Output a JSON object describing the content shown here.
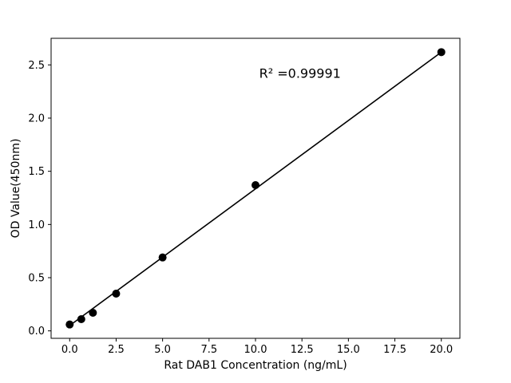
{
  "chart_data": {
    "type": "scatter",
    "title": "",
    "xlabel": "Rat DAB1 Concentration (ng/mL)",
    "ylabel": "OD Value(450nm)",
    "annotation": {
      "text": "R² =0.99991",
      "x": 10.2,
      "y": 2.38
    },
    "x": [
      0,
      0.625,
      1.25,
      2.5,
      5,
      10,
      20
    ],
    "y": [
      0.06,
      0.11,
      0.17,
      0.35,
      0.69,
      1.37,
      2.62
    ],
    "fit_line": {
      "x": [
        0,
        20
      ],
      "y": [
        0.05,
        2.62
      ]
    },
    "xlim": [
      -1,
      21
    ],
    "ylim": [
      -0.07,
      2.75
    ],
    "xticks": [
      0.0,
      2.5,
      5.0,
      7.5,
      10.0,
      12.5,
      15.0,
      17.5,
      20.0
    ],
    "xtick_labels": [
      "0.0",
      "2.5",
      "5.0",
      "7.5",
      "10.0",
      "12.5",
      "15.0",
      "17.5",
      "20.0"
    ],
    "yticks": [
      0.0,
      0.5,
      1.0,
      1.5,
      2.0,
      2.5
    ],
    "ytick_labels": [
      "0.0",
      "0.5",
      "1.0",
      "1.5",
      "2.0",
      "2.5"
    ],
    "legend": null,
    "grid": false,
    "colors": {
      "point": "#000000",
      "line": "#000000",
      "axis": "#000000",
      "background": "#ffffff"
    }
  }
}
